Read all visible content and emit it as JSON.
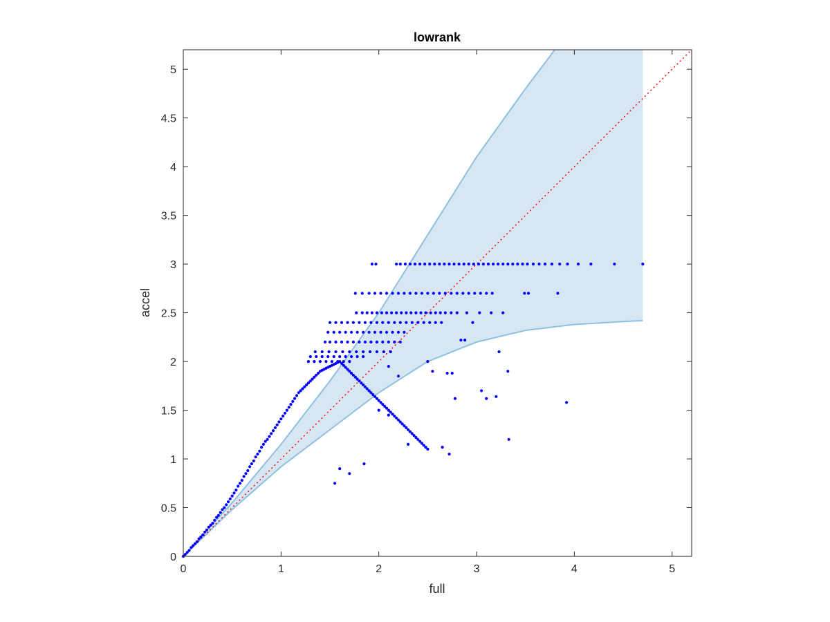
{
  "chart_data": {
    "type": "scatter",
    "title": "lowrank",
    "xlabel": "full",
    "ylabel": "accel",
    "xlim": [
      0,
      5.2
    ],
    "ylim": [
      0,
      5.2
    ],
    "x_ticks": [
      0,
      1,
      2,
      3,
      4,
      5
    ],
    "x_tick_labels": [
      "0",
      "1",
      "2",
      "3",
      "4",
      "5"
    ],
    "y_ticks": [
      0,
      0.5,
      1,
      1.5,
      2,
      2.5,
      3,
      3.5,
      4,
      4.5,
      5
    ],
    "y_tick_labels": [
      "0",
      "0.5",
      "1",
      "1.5",
      "2",
      "2.5",
      "3",
      "3.5",
      "4",
      "4.5",
      "5"
    ],
    "grid": false,
    "legend": "none",
    "colors": {
      "points": "#0000ff",
      "band_fill": "#d6e7f3",
      "band_edge": "#8fc0e0",
      "reference_line": "#ff0000",
      "axes": "#262626"
    },
    "reference_line": {
      "x": [
        0,
        5.2
      ],
      "y": [
        0,
        5.2
      ],
      "style": "dotted"
    },
    "confidence_band": {
      "upper": {
        "x": [
          0,
          0.5,
          1.0,
          1.5,
          2.0,
          2.5,
          3.0,
          3.5,
          3.8
        ],
        "y": [
          0,
          0.55,
          1.15,
          1.8,
          2.5,
          3.3,
          4.1,
          4.8,
          5.2
        ]
      },
      "lower": {
        "x": [
          0,
          0.5,
          1.0,
          1.5,
          2.0,
          2.5,
          3.0,
          3.5,
          4.0,
          4.5,
          4.7
        ],
        "y": [
          0,
          0.48,
          0.92,
          1.3,
          1.68,
          2.0,
          2.2,
          2.32,
          2.38,
          2.41,
          2.42
        ]
      },
      "x_end": 4.7
    },
    "series": [
      {
        "x": [
          1.93,
          1.97,
          2.18,
          2.22,
          2.27,
          2.32,
          2.37,
          2.42,
          2.47,
          2.52,
          2.57,
          2.62,
          2.67,
          2.72,
          2.77,
          2.82,
          2.87,
          2.92,
          2.97,
          3.02,
          3.07,
          3.12,
          3.17,
          3.22,
          3.27,
          3.32,
          3.37,
          3.42,
          3.47,
          3.52,
          3.58,
          3.64,
          3.7,
          3.77,
          3.85,
          3.93,
          4.04,
          4.17,
          4.41,
          4.7
        ],
        "y": [
          3,
          3,
          3,
          3,
          3,
          3,
          3,
          3,
          3,
          3,
          3,
          3,
          3,
          3,
          3,
          3,
          3,
          3,
          3,
          3,
          3,
          3,
          3,
          3,
          3,
          3,
          3,
          3,
          3,
          3,
          3,
          3,
          3,
          3,
          3,
          3,
          3,
          3,
          3,
          3
        ]
      },
      {
        "x": [
          1.76,
          1.83,
          1.9,
          1.96,
          2.02,
          2.08,
          2.14,
          2.2,
          2.26,
          2.32,
          2.38,
          2.44,
          2.5,
          2.56,
          2.62,
          2.68,
          2.74,
          2.8,
          2.86,
          2.92,
          2.98,
          3.04,
          3.1,
          3.16,
          3.49,
          3.53,
          3.83
        ],
        "y": [
          2.7,
          2.7,
          2.7,
          2.7,
          2.7,
          2.7,
          2.7,
          2.7,
          2.7,
          2.7,
          2.7,
          2.7,
          2.7,
          2.7,
          2.7,
          2.7,
          2.7,
          2.7,
          2.7,
          2.7,
          2.7,
          2.7,
          2.7,
          2.7,
          2.7,
          2.7,
          2.7
        ]
      },
      {
        "x": [
          1.77,
          1.83,
          1.88,
          1.93,
          1.98,
          2.03,
          2.08,
          2.13,
          2.18,
          2.23,
          2.28,
          2.33,
          2.38,
          2.43,
          2.48,
          2.53,
          2.58,
          2.63,
          2.68,
          2.74,
          2.8,
          2.9,
          3.03,
          3.15,
          3.27
        ],
        "y": [
          2.5,
          2.5,
          2.5,
          2.5,
          2.5,
          2.5,
          2.5,
          2.5,
          2.5,
          2.5,
          2.5,
          2.5,
          2.5,
          2.5,
          2.5,
          2.5,
          2.5,
          2.5,
          2.5,
          2.5,
          2.5,
          2.5,
          2.5,
          2.5,
          2.5
        ]
      },
      {
        "x": [
          1.5,
          1.56,
          1.62,
          1.68,
          1.74,
          1.8,
          1.86,
          1.92,
          1.98,
          2.04,
          2.1,
          2.16,
          2.22,
          2.28,
          2.34,
          2.4,
          2.46,
          2.52,
          2.58,
          2.64,
          2.96
        ],
        "y": [
          2.4,
          2.4,
          2.4,
          2.4,
          2.4,
          2.4,
          2.4,
          2.4,
          2.4,
          2.4,
          2.4,
          2.4,
          2.4,
          2.4,
          2.4,
          2.4,
          2.4,
          2.4,
          2.4,
          2.4,
          2.4
        ]
      },
      {
        "x": [
          1.48,
          1.54,
          1.6,
          1.66,
          1.72,
          1.78,
          1.84,
          1.9,
          1.96,
          2.02,
          2.08,
          2.14,
          2.2,
          2.26
        ],
        "y": [
          2.3,
          2.3,
          2.3,
          2.3,
          2.3,
          2.3,
          2.3,
          2.3,
          2.3,
          2.3,
          2.3,
          2.3,
          2.3,
          2.3
        ]
      },
      {
        "x": [
          1.45,
          1.5,
          1.56,
          1.62,
          1.68,
          1.74,
          1.8,
          1.86,
          1.92,
          1.98,
          2.04,
          2.1,
          2.16,
          2.22
        ],
        "y": [
          2.2,
          2.2,
          2.2,
          2.2,
          2.2,
          2.2,
          2.2,
          2.2,
          2.2,
          2.2,
          2.2,
          2.2,
          2.2,
          2.2
        ]
      },
      {
        "x": [
          1.35,
          1.42,
          1.49,
          1.56,
          1.63,
          1.7,
          1.77,
          1.84,
          1.91,
          1.98,
          2.05,
          2.12
        ],
        "y": [
          2.1,
          2.1,
          2.1,
          2.1,
          2.1,
          2.1,
          2.1,
          2.1,
          2.1,
          2.1,
          2.1,
          2.1
        ]
      },
      {
        "x": [
          1.3,
          1.36,
          1.42,
          1.48,
          1.54,
          1.6,
          1.66,
          1.72,
          1.78,
          1.84
        ],
        "y": [
          2.05,
          2.05,
          2.05,
          2.05,
          2.05,
          2.05,
          2.05,
          2.05,
          2.05,
          2.05
        ]
      },
      {
        "x": [
          1.28,
          1.34,
          1.4,
          1.46,
          1.52,
          1.58,
          1.64,
          1.7
        ],
        "y": [
          2.0,
          2.0,
          2.0,
          2.0,
          2.0,
          2.0,
          2.0,
          2.0
        ]
      },
      {
        "x": [
          2.84,
          2.88,
          3.23,
          3.32,
          2.1,
          2.2,
          2.5,
          2.55,
          2.7,
          2.75,
          2.78,
          3.05,
          3.1,
          3.2,
          3.92,
          2.65,
          2.72,
          3.33,
          2.3,
          1.85,
          1.55,
          1.6,
          1.7,
          2.0,
          2.1
        ],
        "y": [
          2.22,
          2.22,
          2.1,
          1.9,
          1.95,
          1.85,
          2.0,
          1.9,
          1.88,
          1.88,
          1.62,
          1.7,
          1.62,
          1.64,
          1.58,
          1.12,
          1.05,
          1.2,
          1.15,
          0.95,
          0.75,
          0.9,
          0.85,
          1.5,
          1.45
        ]
      },
      {
        "x": [
          0.0,
          0.02,
          0.04,
          0.06,
          0.08,
          0.1,
          0.12,
          0.14,
          0.16,
          0.18,
          0.2,
          0.22,
          0.24,
          0.26,
          0.28,
          0.3,
          0.32,
          0.34,
          0.36,
          0.38,
          0.4,
          0.42,
          0.44,
          0.46,
          0.48,
          0.5,
          0.52,
          0.54,
          0.56,
          0.58,
          0.6,
          0.62,
          0.64,
          0.66,
          0.68,
          0.7,
          0.72,
          0.74,
          0.76,
          0.78,
          0.8,
          0.82,
          0.84,
          0.86,
          0.88,
          0.9,
          0.92,
          0.94,
          0.96,
          0.98,
          1.0,
          1.02,
          1.04,
          1.06,
          1.08,
          1.1,
          1.12,
          1.14,
          1.16,
          1.18,
          1.2,
          1.22,
          1.24,
          1.26,
          1.28,
          1.3,
          1.32,
          1.34,
          1.36,
          1.38,
          1.4,
          1.42,
          1.44,
          1.46,
          1.48,
          1.5,
          1.52,
          1.54,
          1.56,
          1.58,
          1.6,
          1.62,
          1.64,
          1.66,
          1.68,
          1.7,
          1.72,
          1.74,
          1.76,
          1.78,
          1.8,
          1.82,
          1.84,
          1.86,
          1.88,
          1.9,
          1.92,
          1.94,
          1.96,
          1.98,
          2.0,
          2.02,
          2.04,
          2.06,
          2.08,
          2.1,
          2.12,
          2.14,
          2.16,
          2.18,
          2.2,
          2.22,
          2.24,
          2.26,
          2.28,
          2.3,
          2.32,
          2.34,
          2.36,
          2.38,
          2.4,
          2.42,
          2.44,
          2.46,
          2.48,
          2.5
        ],
        "y": [
          0.0,
          0.02,
          0.04,
          0.06,
          0.09,
          0.11,
          0.13,
          0.15,
          0.18,
          0.2,
          0.22,
          0.25,
          0.27,
          0.3,
          0.32,
          0.34,
          0.37,
          0.4,
          0.42,
          0.45,
          0.48,
          0.5,
          0.53,
          0.56,
          0.59,
          0.62,
          0.65,
          0.68,
          0.72,
          0.75,
          0.78,
          0.82,
          0.85,
          0.88,
          0.92,
          0.95,
          0.98,
          1.02,
          1.05,
          1.08,
          1.12,
          1.15,
          1.18,
          1.2,
          1.23,
          1.26,
          1.29,
          1.32,
          1.35,
          1.38,
          1.41,
          1.44,
          1.47,
          1.5,
          1.53,
          1.56,
          1.59,
          1.62,
          1.65,
          1.68,
          1.7,
          1.72,
          1.74,
          1.76,
          1.78,
          1.8,
          1.82,
          1.84,
          1.86,
          1.88,
          1.9,
          1.91,
          1.92,
          1.93,
          1.94,
          1.95,
          1.96,
          1.97,
          1.98,
          1.99,
          2.0,
          1.98,
          1.96,
          1.94,
          1.92,
          1.9,
          1.88,
          1.86,
          1.84,
          1.82,
          1.8,
          1.78,
          1.76,
          1.74,
          1.72,
          1.7,
          1.68,
          1.66,
          1.64,
          1.62,
          1.6,
          1.58,
          1.56,
          1.54,
          1.52,
          1.5,
          1.48,
          1.46,
          1.44,
          1.42,
          1.4,
          1.38,
          1.36,
          1.34,
          1.32,
          1.3,
          1.28,
          1.26,
          1.24,
          1.22,
          1.2,
          1.18,
          1.16,
          1.14,
          1.12,
          1.1
        ]
      }
    ]
  }
}
